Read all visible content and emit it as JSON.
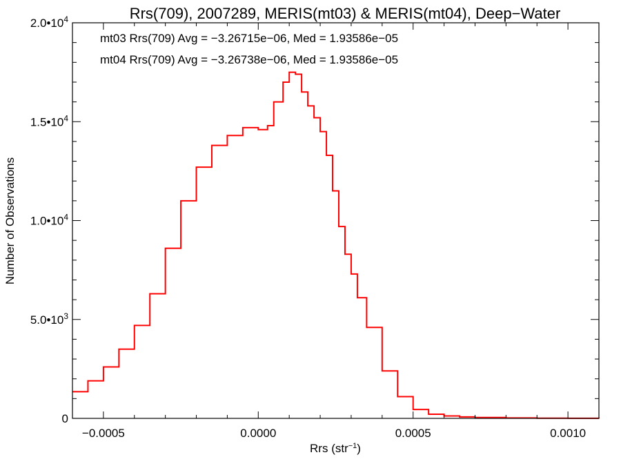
{
  "chart_data": {
    "type": "line",
    "title": "Rrs(709), 2007289, MERIS(mt03) & MERIS(mt04), Deep−Water",
    "xlabel": "Rrs (str",
    "xlabel_sup": "−1",
    "xlabel_close": ")",
    "ylabel": "Number of Observations",
    "xlim": [
      -0.0006,
      0.0011
    ],
    "ylim": [
      0,
      20000
    ],
    "grid": false,
    "x_ticks": [
      {
        "value": -0.0005,
        "label": "−0.0005"
      },
      {
        "value": 0.0,
        "label": "0.0000"
      },
      {
        "value": 0.0005,
        "label": "0.0005"
      },
      {
        "value": 0.001,
        "label": "0.0010"
      }
    ],
    "y_ticks": [
      {
        "value": 0,
        "mant": "0",
        "exp": ""
      },
      {
        "value": 5000,
        "mant": "5.0•10",
        "exp": "3"
      },
      {
        "value": 10000,
        "mant": "1.0•10",
        "exp": "4"
      },
      {
        "value": 15000,
        "mant": "1.5•10",
        "exp": "4"
      },
      {
        "value": 20000,
        "mant": "2.0•10",
        "exp": "4"
      }
    ],
    "annotations": [
      {
        "text": "mt03 Rrs(709) Avg = −3.26715e−06, Med = 1.93586e−05",
        "color": "#000000"
      },
      {
        "text": "mt04 Rrs(709) Avg = −3.26738e−06, Med = 1.93586e−05",
        "color": "#ff0000"
      }
    ],
    "series": [
      {
        "color": "#ff0000",
        "step": true,
        "x": [
          -0.0006,
          -0.00055,
          -0.0005,
          -0.00045,
          -0.0004,
          -0.00035,
          -0.0003,
          -0.00025,
          -0.0002,
          -0.00015,
          -0.0001,
          -5e-05,
          0.0,
          3e-05,
          5e-05,
          8e-05,
          0.0001,
          0.00012,
          0.00014,
          0.00016,
          0.00018,
          0.0002,
          0.00022,
          0.00024,
          0.00026,
          0.00028,
          0.0003,
          0.00032,
          0.00035,
          0.0004,
          0.00045,
          0.0005,
          0.00055,
          0.0006,
          0.00065,
          0.0007,
          0.0008,
          0.0009,
          0.001,
          0.0011
        ],
        "y": [
          1350,
          1900,
          2600,
          3500,
          4700,
          6300,
          8600,
          11000,
          12700,
          13800,
          14300,
          14700,
          14600,
          14800,
          16000,
          17000,
          17500,
          17400,
          16500,
          15800,
          15200,
          14500,
          13300,
          11500,
          9700,
          8300,
          7300,
          6100,
          4600,
          2400,
          1100,
          450,
          210,
          120,
          75,
          45,
          22,
          10,
          5,
          2
        ]
      },
      {
        "color": "#000000",
        "step": true,
        "x": [
          -0.0006,
          -0.00055,
          -0.0005,
          -0.00045,
          -0.0004,
          -0.00035,
          -0.0003,
          -0.00025,
          -0.0002,
          -0.00015,
          -0.0001,
          -5e-05,
          0.0,
          3e-05,
          5e-05,
          8e-05,
          0.0001,
          0.00012,
          0.00014,
          0.00016,
          0.00018,
          0.0002,
          0.00022,
          0.00024,
          0.00026,
          0.00028,
          0.0003,
          0.00032,
          0.00035,
          0.0004,
          0.00045,
          0.0005,
          0.00055,
          0.0006,
          0.00065,
          0.0007,
          0.0008,
          0.0009,
          0.001,
          0.0011
        ],
        "y": [
          1350,
          1900,
          2600,
          3500,
          4700,
          6300,
          8600,
          11000,
          12700,
          13800,
          14300,
          14700,
          14600,
          14800,
          16000,
          17000,
          17500,
          17400,
          16500,
          15800,
          15200,
          14500,
          13300,
          11500,
          9700,
          8300,
          7300,
          6100,
          4600,
          2400,
          1100,
          450,
          210,
          120,
          75,
          45,
          22,
          10,
          5,
          2
        ]
      }
    ]
  }
}
